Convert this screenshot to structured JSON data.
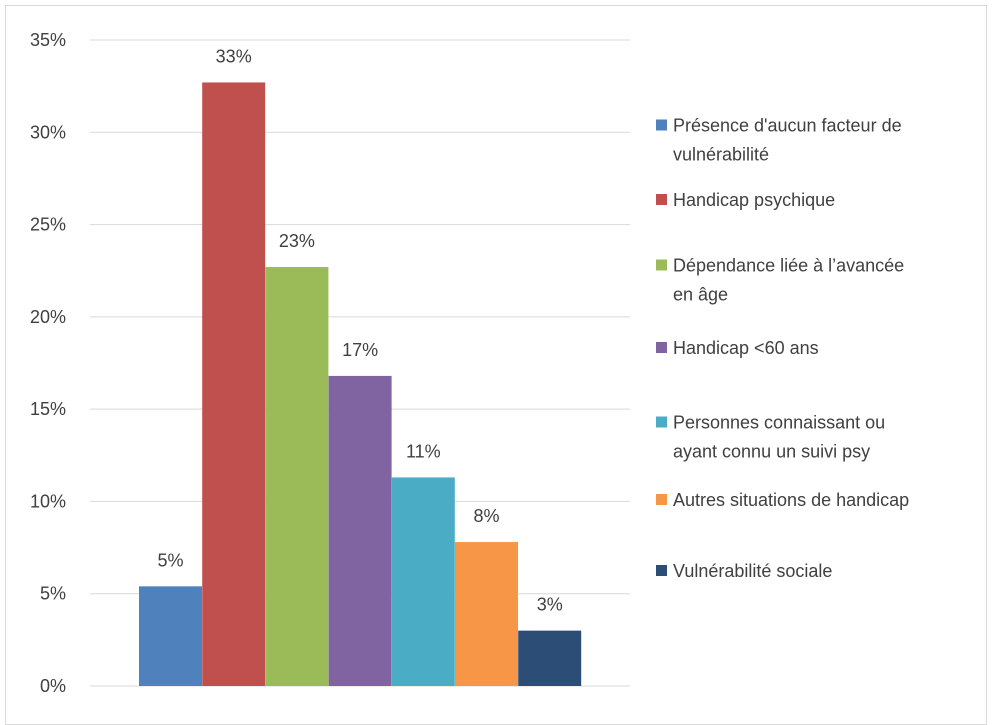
{
  "chart_data": {
    "type": "bar",
    "title": "",
    "xlabel": "",
    "ylabel": "",
    "ylim": [
      0,
      35
    ],
    "y_ticks": [
      0,
      5,
      10,
      15,
      20,
      25,
      30,
      35
    ],
    "y_tick_labels": [
      "0%",
      "5%",
      "10%",
      "15%",
      "20%",
      "25%",
      "30%",
      "35%"
    ],
    "grid": true,
    "legend_position": "right",
    "categories": [
      "Présence d'aucun facteur de vulnérabilité",
      "Handicap psychique",
      "Dépendance liée à l’avancée en âge",
      "Handicap <60 ans",
      "Personnes connaissant ou ayant connu un suivi psy",
      "Autres situations de handicap",
      "Vulnérabilité sociale"
    ],
    "values": [
      5.4,
      32.7,
      22.7,
      16.8,
      11.3,
      7.8,
      3.0
    ],
    "data_labels": [
      "5%",
      "33%",
      "23%",
      "17%",
      "11%",
      "8%",
      "3%"
    ],
    "colors": [
      "#4f81bd",
      "#c0504d",
      "#9bbb59",
      "#8064a2",
      "#4bacc6",
      "#f79646",
      "#2c4d75"
    ],
    "legend": [
      {
        "lines": [
          "Présence d'aucun facteur de",
          "vulnérabilité"
        ]
      },
      {
        "lines": [
          "Handicap psychique"
        ]
      },
      {
        "lines": [
          "Dépendance liée à l’avancée",
          "en âge"
        ]
      },
      {
        "lines": [
          "Handicap <60 ans"
        ]
      },
      {
        "lines": [
          "Personnes connaissant ou",
          "ayant connu un suivi psy"
        ]
      },
      {
        "lines": [
          "Autres situations de handicap"
        ]
      },
      {
        "lines": [
          "Vulnérabilité sociale"
        ]
      }
    ]
  }
}
